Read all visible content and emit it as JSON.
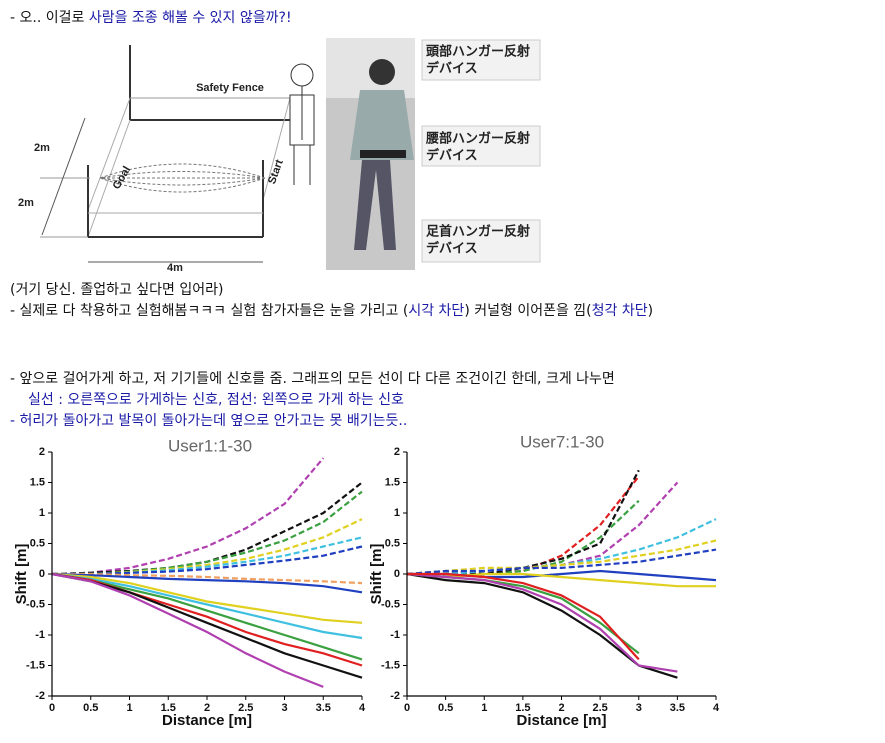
{
  "intro": [
    "- 오.. 이걸로 ",
    "사람을 조종 해볼 수 있지 않을까?!"
  ],
  "figure": {
    "safety_fence": "Safety Fence",
    "goal": "Goal",
    "start": "Start",
    "dim_left_top": "2m",
    "dim_left_bottom": "2m",
    "dim_bottom": "4m",
    "devices": [
      [
        "頭部ハンガー反射",
        "デバイス"
      ],
      [
        "腰部ハンガー反射",
        "デバイス"
      ],
      [
        "足首ハンガー反射",
        "デバイス"
      ]
    ]
  },
  "caption": "(거기 당신. 졸업하고 싶다면 입어라)",
  "experiment": [
    "- 실제로 다 착용하고 실험해봄ㅋㅋㅋ 실험 참가자들은 눈을 가리고 (",
    "시각 차단",
    ") 커널형 이어폰을 낌(",
    "청각 차단",
    ")"
  ],
  "walk": "- 앞으로 걸어가게 하고, 저 기기들에 신호를 줌. 그래프의 모든 선이 다 다른 조건이긴 한데, 크게 나누면",
  "legend_note": "실선 : 오른쪽으로 가게하는 신호, 점선: 왼쪽으로 가게 하는 신호",
  "conclusion": "- 허리가 돌아가고 발목이 돌아가는데 옆으로 안가고는 못 배기는듯..",
  "chart_data": [
    {
      "type": "line",
      "title": "User1:1-30",
      "xlabel": "Distance [m]",
      "ylabel": "Shift [m]",
      "x": [
        0,
        0.5,
        1,
        1.5,
        2,
        2.5,
        3,
        3.5,
        4
      ],
      "xlim": [
        0,
        4
      ],
      "ylim": [
        -2,
        2
      ],
      "xticks": [
        0,
        0.5,
        1,
        1.5,
        2,
        2.5,
        3,
        3.5,
        4
      ],
      "yticks": [
        -2,
        -1.5,
        -1,
        -0.5,
        0,
        0.5,
        1,
        1.5,
        2
      ],
      "series": [
        {
          "color": "#b040b0",
          "style": "dashed",
          "values": [
            0,
            0.02,
            0.1,
            0.25,
            0.45,
            0.75,
            1.15,
            1.9,
            null
          ]
        },
        {
          "color": "#111111",
          "style": "dashed",
          "values": [
            0,
            0.02,
            0.05,
            0.1,
            0.2,
            0.4,
            0.7,
            1.0,
            1.5
          ]
        },
        {
          "color": "#3aa040",
          "style": "dashed",
          "values": [
            0,
            0,
            0.04,
            0.1,
            0.2,
            0.35,
            0.55,
            0.85,
            1.35
          ]
        },
        {
          "color": "#e0d020",
          "style": "dashed",
          "values": [
            0,
            0,
            0.03,
            0.08,
            0.15,
            0.25,
            0.4,
            0.6,
            0.9
          ]
        },
        {
          "color": "#40c0e0",
          "style": "dashed",
          "values": [
            0,
            0,
            0.02,
            0.06,
            0.12,
            0.2,
            0.3,
            0.45,
            0.6
          ]
        },
        {
          "color": "#2040c0",
          "style": "dashed",
          "values": [
            0,
            0,
            0.02,
            0.04,
            0.08,
            0.15,
            0.22,
            0.3,
            0.45
          ]
        },
        {
          "color": "#f0a060",
          "style": "dashed",
          "values": [
            0,
            0,
            -0.02,
            -0.03,
            -0.05,
            -0.08,
            -0.1,
            -0.12,
            -0.15
          ]
        },
        {
          "color": "#2040c0",
          "style": "solid",
          "values": [
            0,
            -0.02,
            -0.05,
            -0.08,
            -0.1,
            -0.12,
            -0.15,
            -0.2,
            -0.3
          ]
        },
        {
          "color": "#e0d020",
          "style": "solid",
          "values": [
            0,
            -0.05,
            -0.15,
            -0.3,
            -0.45,
            -0.55,
            -0.65,
            -0.75,
            -0.8
          ]
        },
        {
          "color": "#40c0e0",
          "style": "solid",
          "values": [
            0,
            -0.08,
            -0.2,
            -0.35,
            -0.5,
            -0.65,
            -0.8,
            -0.95,
            -1.05
          ]
        },
        {
          "color": "#3aa040",
          "style": "solid",
          "values": [
            0,
            -0.1,
            -0.25,
            -0.4,
            -0.6,
            -0.8,
            -1.0,
            -1.2,
            -1.4
          ]
        },
        {
          "color": "#e02020",
          "style": "solid",
          "values": [
            0,
            -0.1,
            -0.3,
            -0.5,
            -0.7,
            -0.95,
            -1.15,
            -1.3,
            -1.5
          ]
        },
        {
          "color": "#111111",
          "style": "solid",
          "values": [
            0,
            -0.12,
            -0.3,
            -0.55,
            -0.8,
            -1.05,
            -1.3,
            -1.5,
            -1.7
          ]
        },
        {
          "color": "#b040b0",
          "style": "solid",
          "values": [
            0,
            -0.12,
            -0.35,
            -0.65,
            -0.95,
            -1.3,
            -1.6,
            -1.85,
            null
          ]
        }
      ]
    },
    {
      "type": "line",
      "title": "User7:1-30",
      "xlabel": "Distance [m]",
      "ylabel": "Shift [m]",
      "x": [
        0,
        0.5,
        1,
        1.5,
        2,
        2.5,
        3,
        3.5,
        4
      ],
      "xlim": [
        0,
        4
      ],
      "ylim": [
        -2,
        2
      ],
      "xticks": [
        0,
        0.5,
        1,
        1.5,
        2,
        2.5,
        3,
        3.5,
        4
      ],
      "yticks": [
        -2,
        -1.5,
        -1,
        -0.5,
        0,
        0.5,
        1,
        1.5,
        2
      ],
      "series": [
        {
          "color": "#e02020",
          "style": "dashed",
          "values": [
            0,
            -0.05,
            0,
            0.05,
            0.3,
            0.8,
            1.6,
            null,
            null
          ]
        },
        {
          "color": "#3aa040",
          "style": "dashed",
          "values": [
            0,
            0,
            0,
            0.05,
            0.2,
            0.6,
            1.2,
            null,
            null
          ]
        },
        {
          "color": "#111111",
          "style": "dashed",
          "values": [
            0,
            0.05,
            0,
            0.1,
            0.25,
            0.5,
            1.7,
            null,
            null
          ]
        },
        {
          "color": "#b040b0",
          "style": "dashed",
          "values": [
            0,
            0,
            0.05,
            0.1,
            0.15,
            0.3,
            0.8,
            1.5,
            null
          ]
        },
        {
          "color": "#40c0e0",
          "style": "dashed",
          "values": [
            0,
            0,
            0.05,
            0.1,
            0.15,
            0.25,
            0.4,
            0.6,
            0.9
          ]
        },
        {
          "color": "#e0d020",
          "style": "dashed",
          "values": [
            0,
            0.05,
            0.1,
            0.1,
            0.15,
            0.2,
            0.3,
            0.4,
            0.55
          ]
        },
        {
          "color": "#2040c0",
          "style": "dashed",
          "values": [
            0,
            0.05,
            0.05,
            0.1,
            0.1,
            0.15,
            0.2,
            0.3,
            0.4
          ]
        },
        {
          "color": "#2040c0",
          "style": "solid",
          "values": [
            0,
            0,
            -0.05,
            -0.05,
            0,
            0.05,
            0,
            -0.05,
            -0.1
          ]
        },
        {
          "color": "#e0d020",
          "style": "solid",
          "values": [
            0,
            -0.05,
            0,
            0,
            -0.05,
            -0.1,
            -0.15,
            -0.2,
            -0.2
          ]
        },
        {
          "color": "#111111",
          "style": "solid",
          "values": [
            0,
            -0.1,
            -0.15,
            -0.3,
            -0.6,
            -1.0,
            -1.5,
            -1.7,
            null
          ]
        },
        {
          "color": "#3aa040",
          "style": "solid",
          "values": [
            0,
            -0.05,
            -0.1,
            -0.2,
            -0.4,
            -0.8,
            -1.3,
            null,
            null
          ]
        },
        {
          "color": "#b040b0",
          "style": "solid",
          "values": [
            0,
            -0.05,
            -0.1,
            -0.25,
            -0.5,
            -0.9,
            -1.5,
            -1.6,
            null
          ]
        },
        {
          "color": "#e02020",
          "style": "solid",
          "values": [
            0,
            0,
            -0.05,
            -0.15,
            -0.35,
            -0.7,
            -1.4,
            null,
            null
          ]
        }
      ]
    }
  ]
}
